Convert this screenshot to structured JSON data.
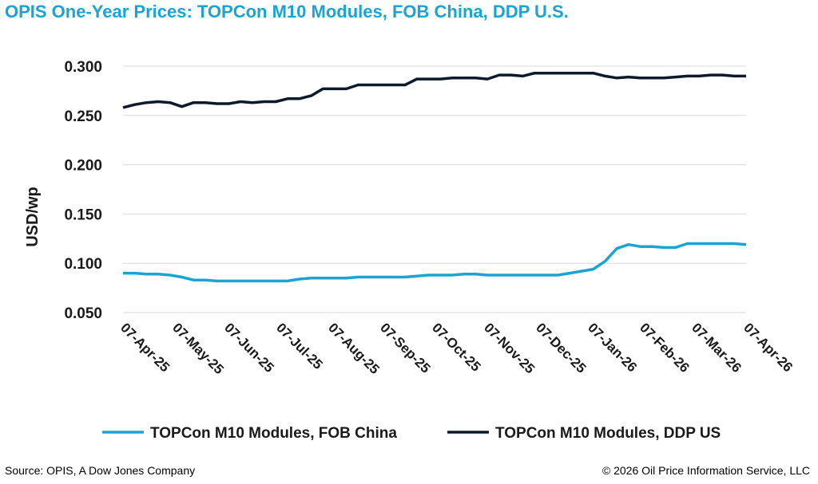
{
  "title": "OPIS One-Year Prices: TOPCon M10 Modules, FOB China, DDP U.S.",
  "footer": {
    "source": "Source: OPIS, A Dow Jones Company",
    "copyright": "© 2026 Oil Price Information Service, LLC"
  },
  "chart_data": {
    "type": "line",
    "ylabel": "USD/wp",
    "xlabel": "",
    "ylim": [
      0.05,
      0.3
    ],
    "yticks": [
      "0.050",
      "0.100",
      "0.150",
      "0.200",
      "0.250",
      "0.300"
    ],
    "ytick_values": [
      0.05,
      0.1,
      0.15,
      0.2,
      0.25,
      0.3
    ],
    "xticks": [
      "07-Apr-25",
      "07-May-25",
      "07-Jun-25",
      "07-Jul-25",
      "07-Aug-25",
      "07-Sep-25",
      "07-Oct-25",
      "07-Nov-25",
      "07-Dec-25",
      "07-Jan-26",
      "07-Feb-26",
      "07-Mar-26",
      "07-Apr-26"
    ],
    "grid": "horizontal",
    "legend_position": "bottom",
    "colors": {
      "fob_china": "#1ba3d4",
      "ddp_us": "#0d1a2b"
    },
    "series": [
      {
        "name": "TOPCon M10 Modules, FOB China",
        "color": "#1ba3d4",
        "values": [
          0.09,
          0.09,
          0.089,
          0.089,
          0.088,
          0.086,
          0.083,
          0.083,
          0.082,
          0.082,
          0.082,
          0.082,
          0.082,
          0.082,
          0.082,
          0.084,
          0.085,
          0.085,
          0.085,
          0.085,
          0.086,
          0.086,
          0.086,
          0.086,
          0.086,
          0.087,
          0.088,
          0.088,
          0.088,
          0.089,
          0.089,
          0.088,
          0.088,
          0.088,
          0.088,
          0.088,
          0.088,
          0.088,
          0.09,
          0.092,
          0.094,
          0.102,
          0.115,
          0.119,
          0.117,
          0.117,
          0.116,
          0.116,
          0.12,
          0.12,
          0.12,
          0.12,
          0.12,
          0.119
        ]
      },
      {
        "name": "TOPCon M10 Modules, DDP US",
        "color": "#0d1a2b",
        "values": [
          0.258,
          0.261,
          0.263,
          0.264,
          0.263,
          0.259,
          0.263,
          0.263,
          0.262,
          0.262,
          0.264,
          0.263,
          0.264,
          0.264,
          0.267,
          0.267,
          0.27,
          0.277,
          0.277,
          0.277,
          0.281,
          0.281,
          0.281,
          0.281,
          0.281,
          0.287,
          0.287,
          0.287,
          0.288,
          0.288,
          0.288,
          0.287,
          0.291,
          0.291,
          0.29,
          0.293,
          0.293,
          0.293,
          0.293,
          0.293,
          0.293,
          0.29,
          0.288,
          0.289,
          0.288,
          0.288,
          0.288,
          0.289,
          0.29,
          0.29,
          0.291,
          0.291,
          0.29,
          0.29
        ]
      }
    ]
  }
}
